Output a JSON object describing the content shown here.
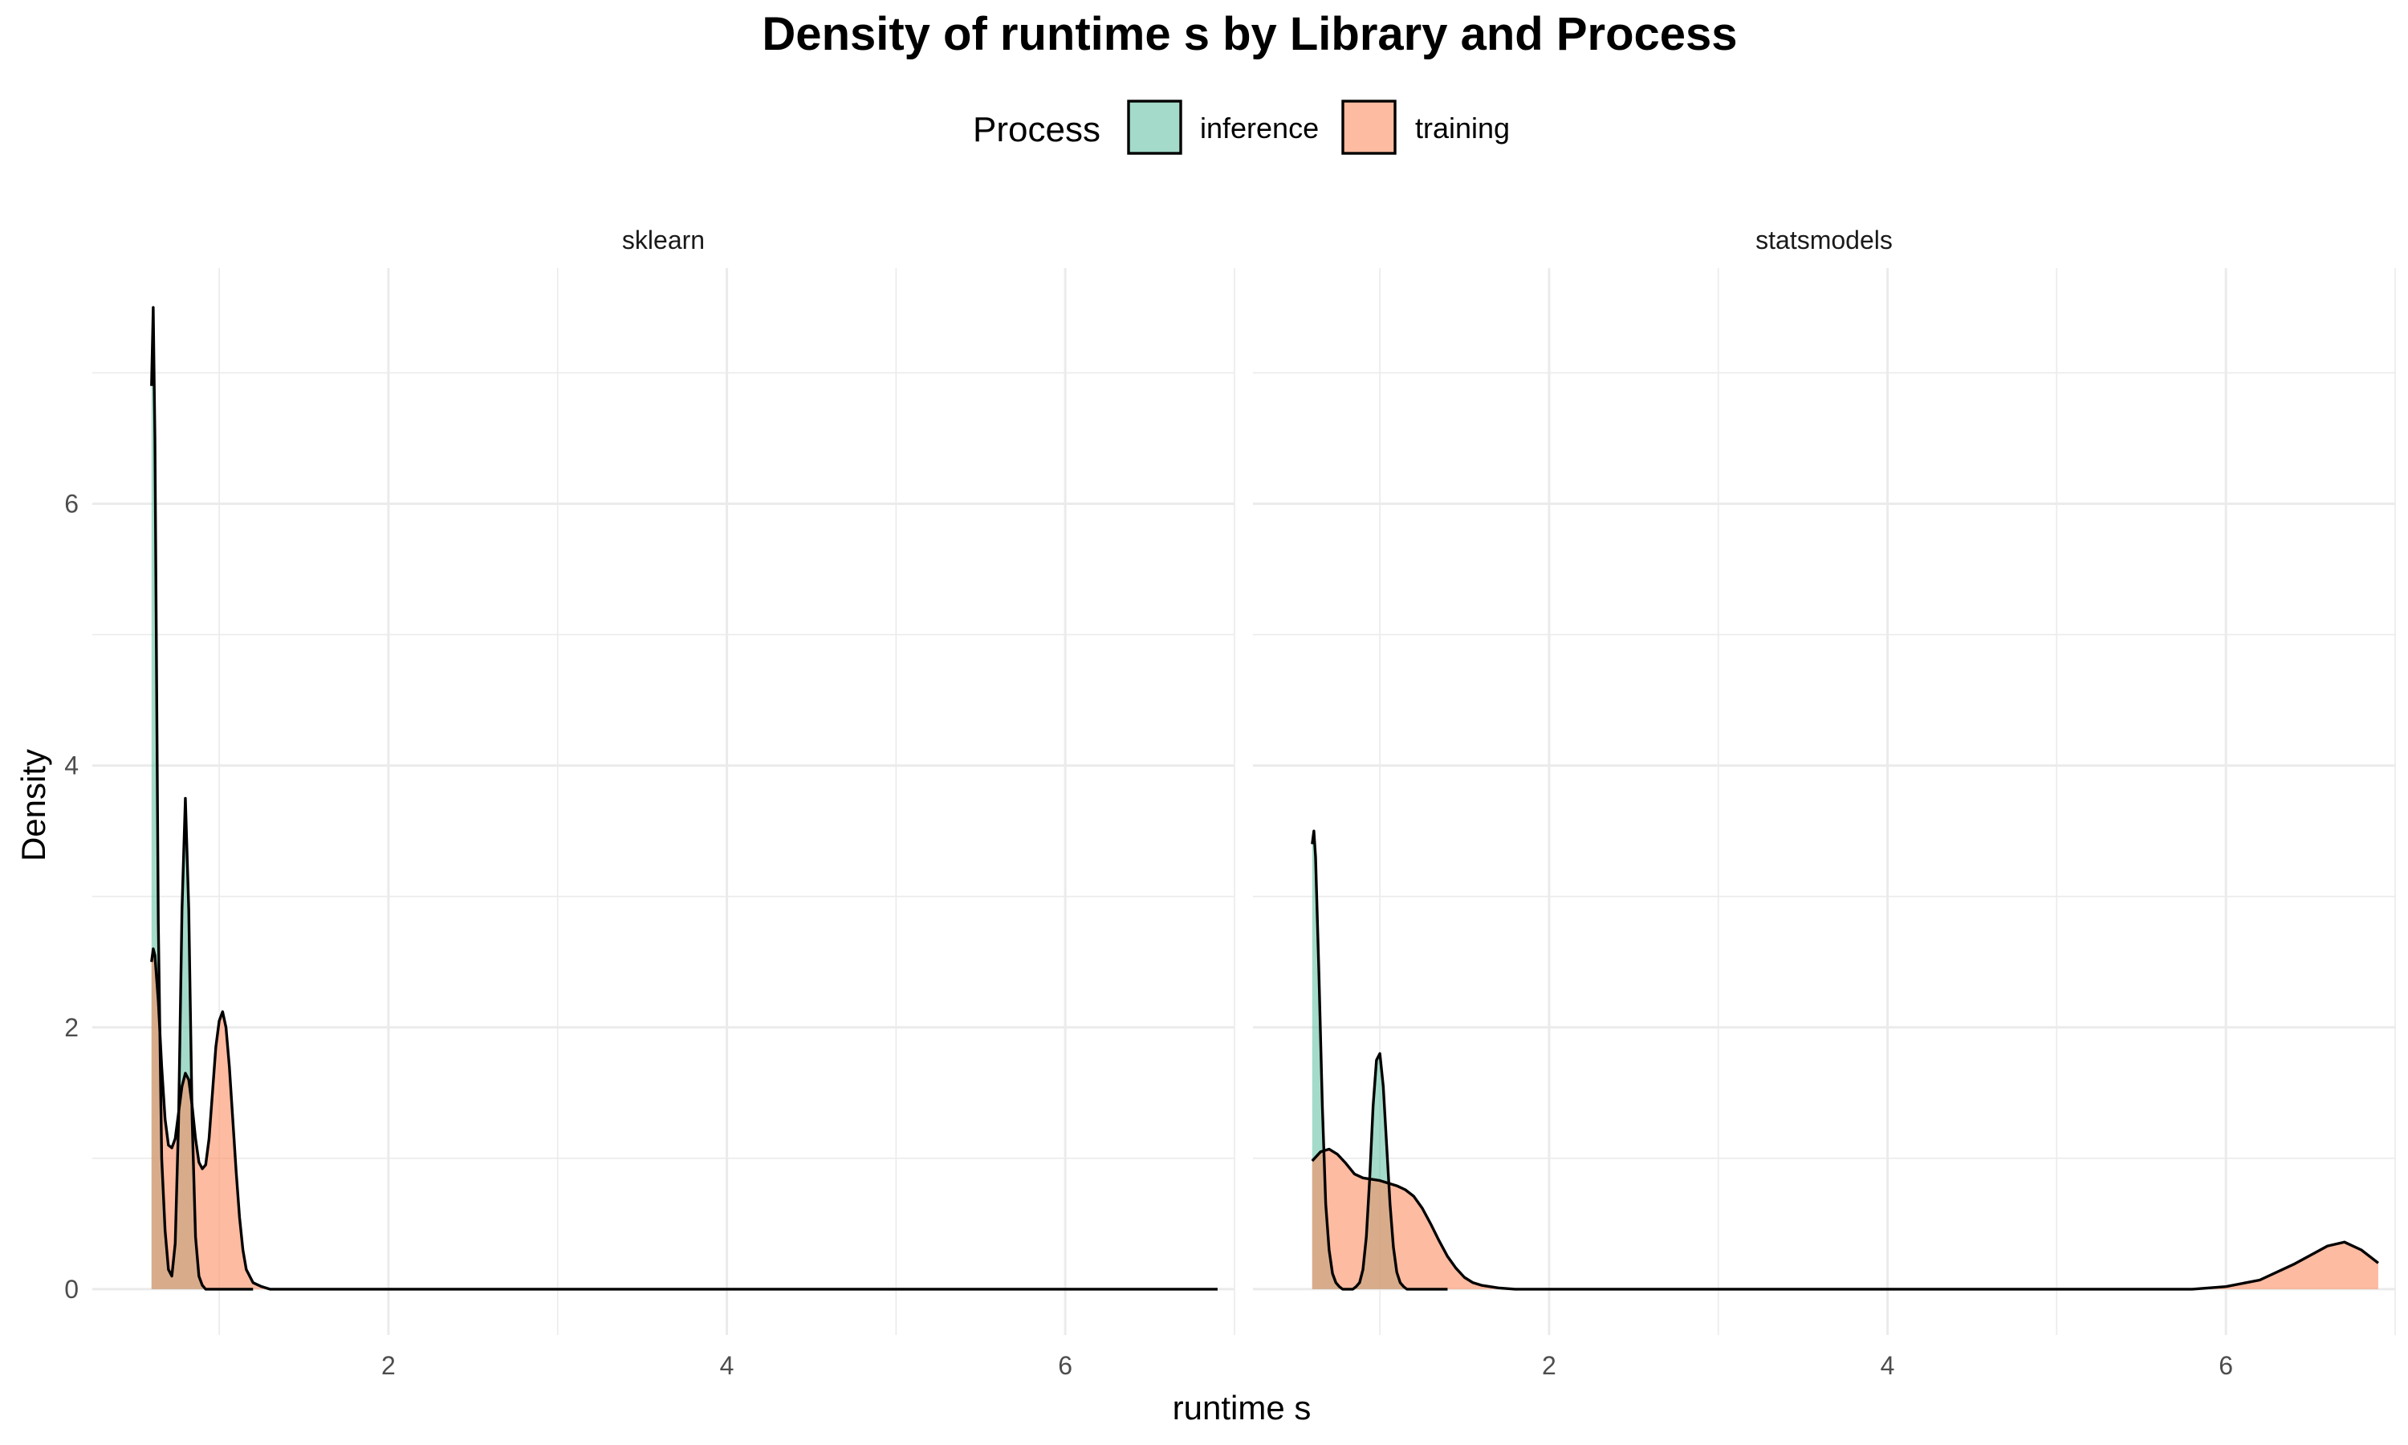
{
  "chart_data": {
    "type": "area",
    "subtype": "density",
    "title": "Density of runtime s by Library and Process",
    "xlabel": "runtime s",
    "ylabel": "Density",
    "legend": {
      "title": "Process",
      "position": "top",
      "entries": [
        {
          "name": "inference",
          "color": "#66c2a5"
        },
        {
          "name": "training",
          "color": "#fc8d62"
        }
      ]
    },
    "fill_opacity": 0.6,
    "xlim": [
      0.25,
      7.0
    ],
    "ylim": [
      -0.35,
      7.8
    ],
    "x_ticks": [
      2,
      4,
      6
    ],
    "y_ticks": [
      0,
      2,
      4,
      6
    ],
    "grid": true,
    "facets": [
      {
        "label": "sklearn",
        "series": [
          {
            "name": "inference",
            "x": [
              0.6,
              0.61,
              0.62,
              0.64,
              0.66,
              0.68,
              0.7,
              0.72,
              0.74,
              0.76,
              0.78,
              0.8,
              0.82,
              0.84,
              0.86,
              0.88,
              0.9,
              0.92,
              0.94,
              0.96,
              1.0,
              1.1,
              1.2
            ],
            "y": [
              6.9,
              7.5,
              6.5,
              2.8,
              1.0,
              0.45,
              0.15,
              0.1,
              0.35,
              1.3,
              2.9,
              3.75,
              2.9,
              1.3,
              0.4,
              0.1,
              0.03,
              0.0,
              0.0,
              0.0,
              0.0,
              0.0,
              0.0
            ]
          },
          {
            "name": "training",
            "x": [
              0.6,
              0.61,
              0.62,
              0.64,
              0.66,
              0.68,
              0.7,
              0.72,
              0.74,
              0.76,
              0.78,
              0.8,
              0.82,
              0.84,
              0.86,
              0.88,
              0.9,
              0.92,
              0.94,
              0.96,
              0.98,
              1.0,
              1.02,
              1.04,
              1.06,
              1.08,
              1.1,
              1.12,
              1.14,
              1.16,
              1.2,
              1.25,
              1.3,
              1.4,
              1.6,
              2.0,
              3.0,
              4.0,
              5.0,
              6.0,
              6.9
            ],
            "y": [
              2.5,
              2.6,
              2.55,
              2.2,
              1.7,
              1.3,
              1.1,
              1.08,
              1.15,
              1.35,
              1.55,
              1.65,
              1.6,
              1.4,
              1.15,
              0.97,
              0.92,
              0.95,
              1.15,
              1.5,
              1.85,
              2.05,
              2.12,
              2.0,
              1.7,
              1.3,
              0.9,
              0.55,
              0.3,
              0.15,
              0.05,
              0.02,
              0.0,
              0.0,
              0.0,
              0.0,
              0.0,
              0.0,
              0.0,
              0.0,
              0.0
            ]
          }
        ]
      },
      {
        "label": "statsmodels",
        "series": [
          {
            "name": "inference",
            "x": [
              0.6,
              0.61,
              0.62,
              0.64,
              0.66,
              0.68,
              0.7,
              0.72,
              0.74,
              0.76,
              0.78,
              0.8,
              0.82,
              0.84,
              0.86,
              0.88,
              0.9,
              0.92,
              0.94,
              0.96,
              0.98,
              1.0,
              1.02,
              1.04,
              1.06,
              1.08,
              1.1,
              1.12,
              1.14,
              1.16,
              1.18,
              1.2,
              1.25,
              1.3,
              1.4
            ],
            "y": [
              3.4,
              3.5,
              3.3,
              2.4,
              1.4,
              0.65,
              0.3,
              0.12,
              0.05,
              0.02,
              0.0,
              0.0,
              0.0,
              0.0,
              0.02,
              0.05,
              0.15,
              0.4,
              0.85,
              1.4,
              1.75,
              1.8,
              1.55,
              1.1,
              0.65,
              0.32,
              0.13,
              0.05,
              0.02,
              0.0,
              0.0,
              0.0,
              0.0,
              0.0,
              0.0
            ]
          },
          {
            "name": "training",
            "x": [
              0.6,
              0.65,
              0.7,
              0.75,
              0.8,
              0.85,
              0.9,
              0.95,
              1.0,
              1.05,
              1.1,
              1.15,
              1.2,
              1.25,
              1.3,
              1.35,
              1.4,
              1.45,
              1.5,
              1.55,
              1.6,
              1.7,
              1.8,
              1.9,
              2.0,
              2.5,
              3.0,
              4.0,
              5.0,
              5.5,
              5.8,
              6.0,
              6.2,
              6.4,
              6.6,
              6.7,
              6.8,
              6.9
            ],
            "y": [
              0.98,
              1.05,
              1.07,
              1.03,
              0.96,
              0.88,
              0.85,
              0.84,
              0.83,
              0.81,
              0.79,
              0.76,
              0.71,
              0.62,
              0.5,
              0.37,
              0.25,
              0.16,
              0.09,
              0.05,
              0.03,
              0.01,
              0.0,
              0.0,
              0.0,
              0.0,
              0.0,
              0.0,
              0.0,
              0.0,
              0.0,
              0.02,
              0.07,
              0.19,
              0.33,
              0.36,
              0.3,
              0.2
            ]
          }
        ]
      }
    ]
  }
}
